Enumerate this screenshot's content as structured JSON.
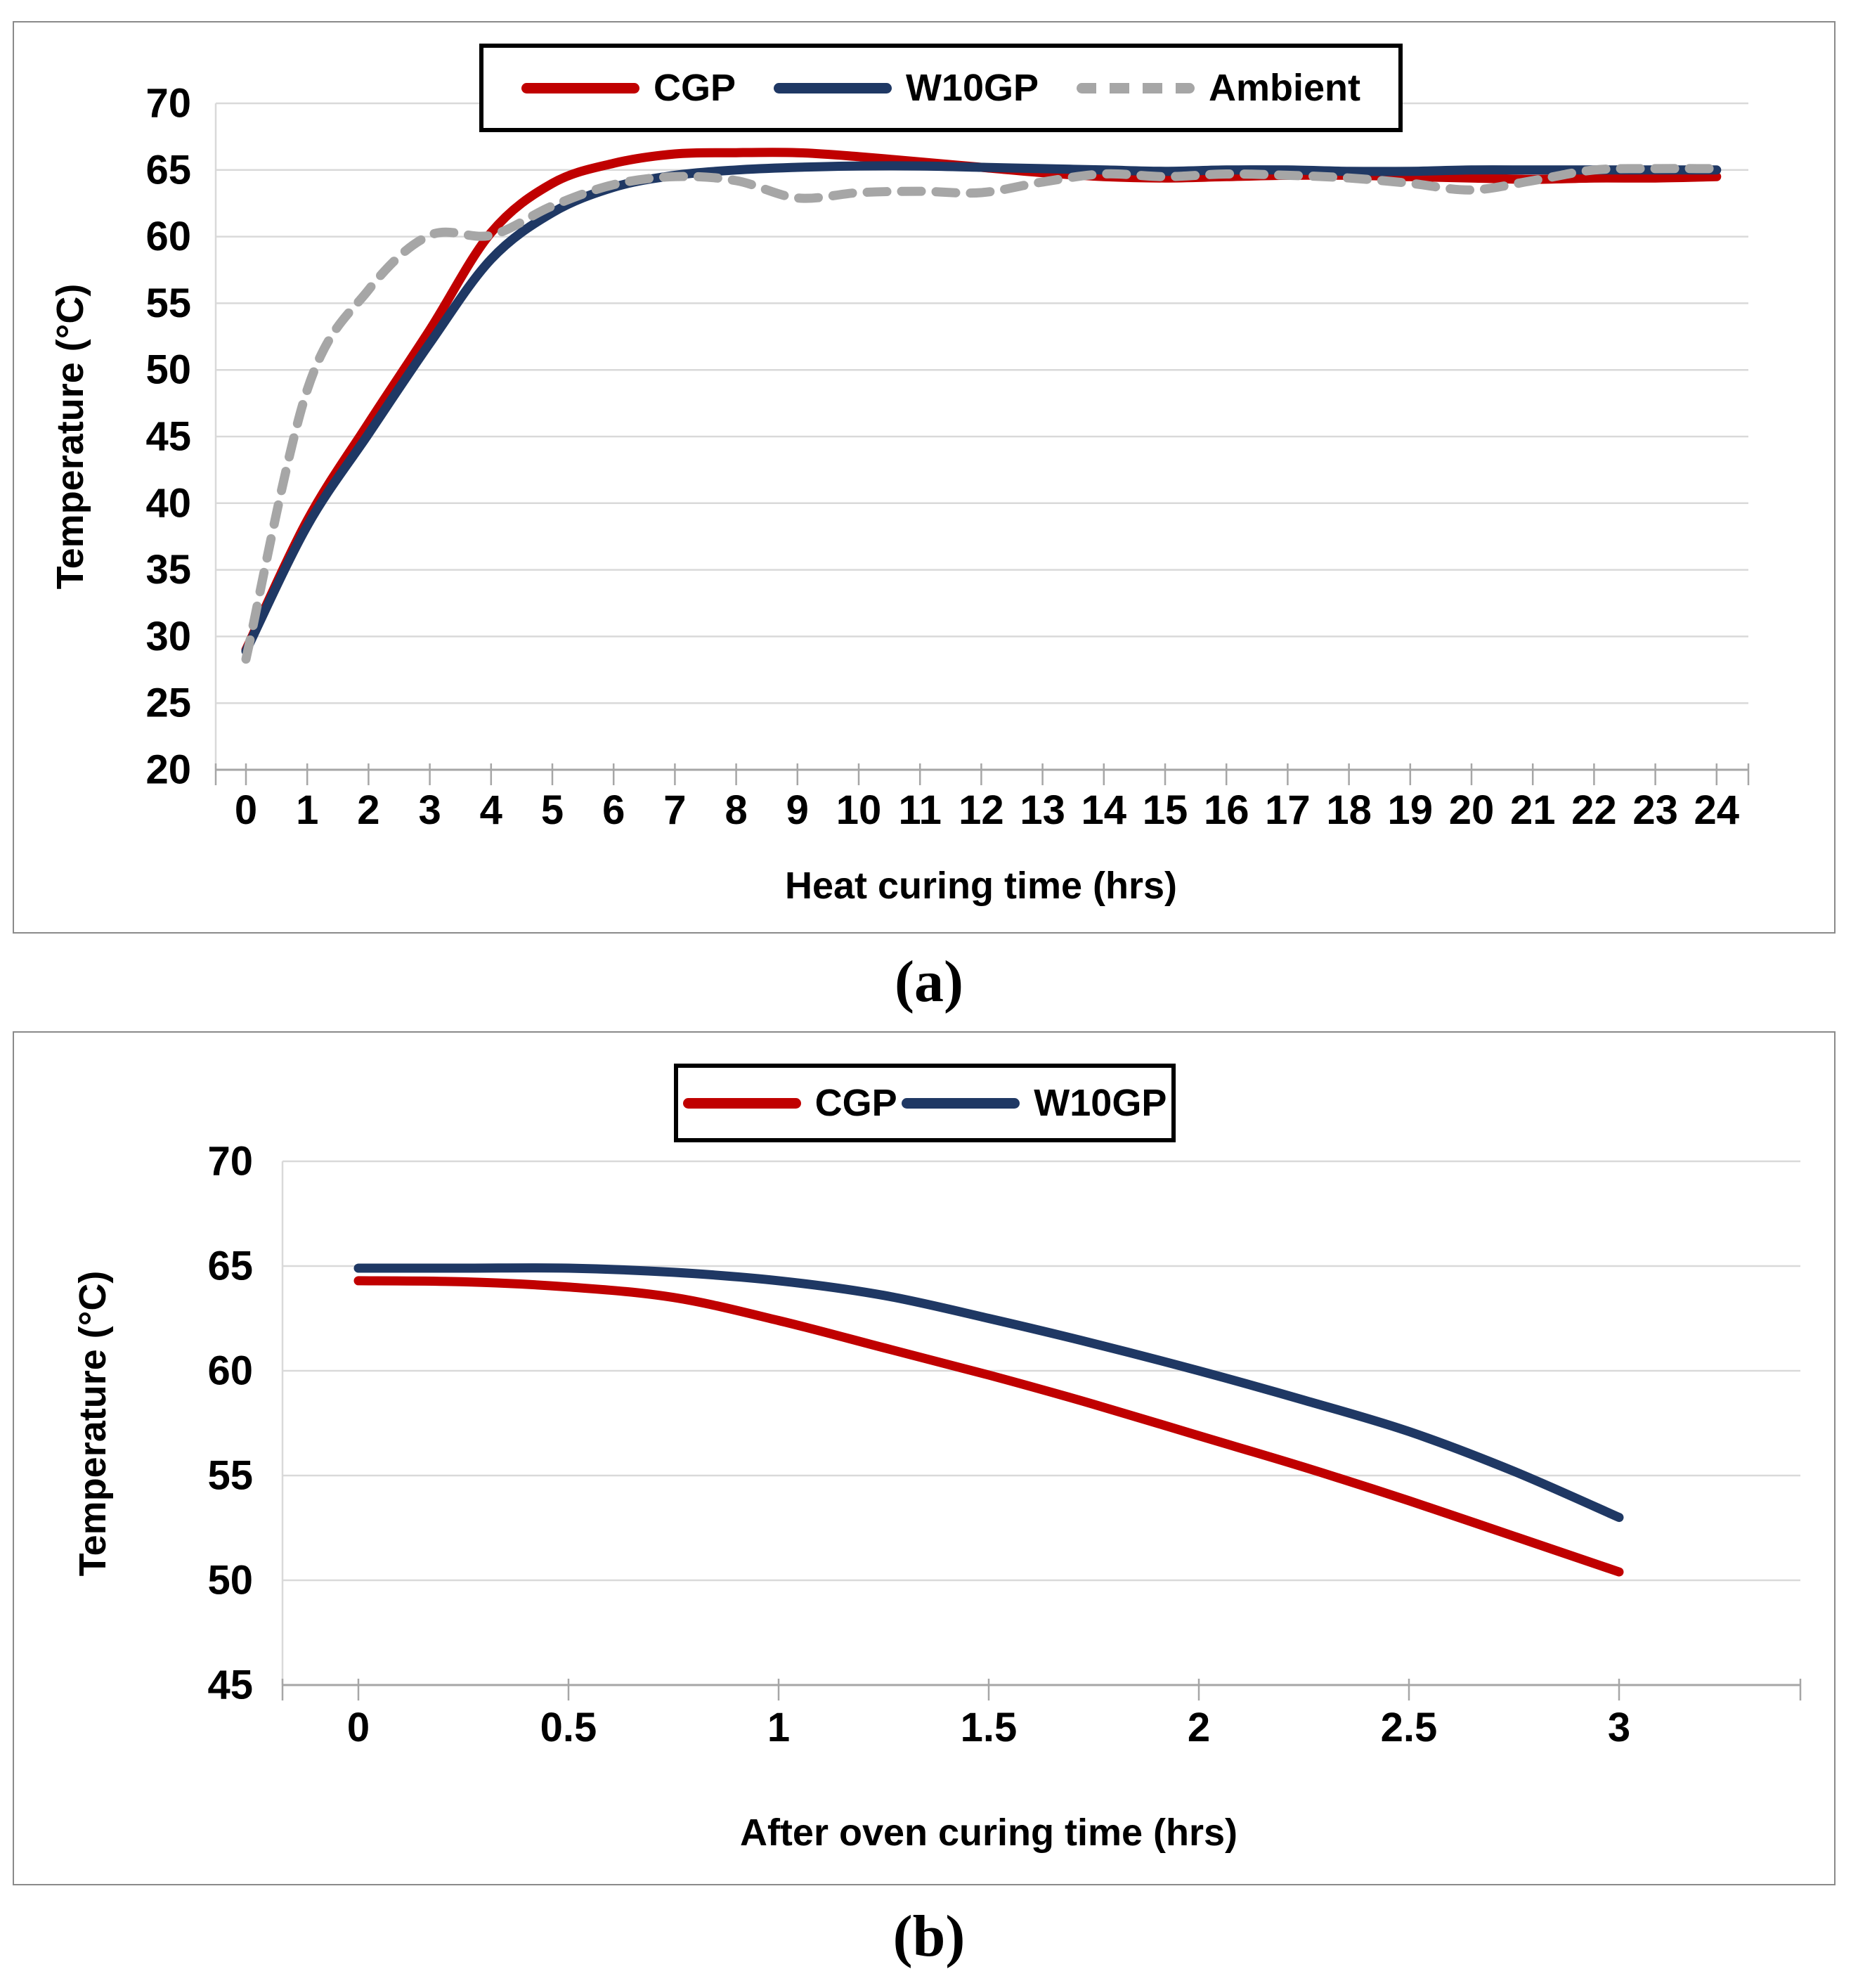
{
  "figure": {
    "caption_a": "(a)",
    "caption_b": "(b)"
  },
  "colors": {
    "cgp": "#C00000",
    "w10gp": "#1F3864",
    "ambient": "#A6A6A6",
    "gridline": "#D9D9D9",
    "axis": "#A6A6A6",
    "text": "#000000",
    "panel_border": "#8A8A8A",
    "legend_border": "#000000"
  },
  "chart_data": [
    {
      "id": "a",
      "type": "line",
      "title": "",
      "xlabel": "Heat curing time (hrs)",
      "ylabel": "Temperature (°C)",
      "xlim": [
        -0.5,
        24.5
      ],
      "ylim": [
        20,
        70
      ],
      "xticks": [
        0,
        1,
        2,
        3,
        4,
        5,
        6,
        7,
        8,
        9,
        10,
        11,
        12,
        13,
        14,
        15,
        16,
        17,
        18,
        19,
        20,
        21,
        22,
        23,
        24
      ],
      "yticks": [
        20,
        25,
        30,
        35,
        40,
        45,
        50,
        55,
        60,
        65,
        70
      ],
      "grid": "horizontal",
      "legend_position": "top-center",
      "legend": [
        "CGP",
        "W10GP",
        "Ambient"
      ],
      "x": [
        0,
        1,
        2,
        3,
        4,
        5,
        6,
        7,
        8,
        9,
        10,
        11,
        12,
        13,
        14,
        15,
        16,
        17,
        18,
        19,
        20,
        21,
        22,
        23,
        24
      ],
      "series": [
        {
          "name": "CGP",
          "color": "#C00000",
          "dash": "solid",
          "values": [
            29.0,
            38.7,
            46.0,
            53.0,
            60.3,
            64.0,
            65.5,
            66.2,
            66.3,
            66.3,
            66.0,
            65.6,
            65.2,
            64.8,
            64.5,
            64.4,
            64.5,
            64.6,
            64.6,
            64.5,
            64.4,
            64.3,
            64.4,
            64.4,
            64.5
          ]
        },
        {
          "name": "W10GP",
          "color": "#1F3864",
          "dash": "solid",
          "values": [
            28.9,
            38.3,
            45.2,
            52.0,
            58.3,
            61.8,
            63.7,
            64.6,
            65.0,
            65.2,
            65.3,
            65.3,
            65.2,
            65.1,
            65.0,
            64.9,
            65.0,
            65.0,
            64.9,
            64.9,
            65.0,
            65.0,
            65.0,
            65.0,
            65.0
          ]
        },
        {
          "name": "Ambient",
          "color": "#A6A6A6",
          "dash": "dashed",
          "values": [
            28.3,
            48.5,
            56.0,
            60.1,
            60.1,
            62.3,
            63.9,
            64.5,
            64.2,
            62.9,
            63.3,
            63.4,
            63.3,
            64.1,
            64.7,
            64.5,
            64.7,
            64.6,
            64.4,
            64.0,
            63.5,
            64.2,
            65.0,
            65.1,
            65.1
          ]
        }
      ]
    },
    {
      "id": "b",
      "type": "line",
      "title": "",
      "xlabel": "After oven curing time (hrs)",
      "ylabel": "Temperature (°C)",
      "xlim": [
        -0.3,
        3.4
      ],
      "ylim": [
        45,
        70
      ],
      "xticks": [
        0,
        0.5,
        1,
        1.5,
        2,
        2.5,
        3
      ],
      "yticks": [
        45,
        50,
        55,
        60,
        65,
        70
      ],
      "grid": "horizontal",
      "legend_position": "top-center",
      "legend": [
        "CGP",
        "W10GP"
      ],
      "x": [
        0,
        0.25,
        0.5,
        0.75,
        1,
        1.25,
        1.5,
        1.75,
        2,
        2.25,
        2.5,
        2.75,
        3
      ],
      "series": [
        {
          "name": "CGP",
          "color": "#C00000",
          "dash": "solid",
          "values": [
            64.3,
            64.25,
            64.0,
            63.5,
            62.4,
            61.1,
            59.8,
            58.4,
            56.9,
            55.4,
            53.8,
            52.1,
            50.4
          ]
        },
        {
          "name": "W10GP",
          "color": "#1F3864",
          "dash": "solid",
          "values": [
            64.9,
            64.9,
            64.9,
            64.7,
            64.3,
            63.6,
            62.5,
            61.3,
            60.0,
            58.6,
            57.1,
            55.2,
            53.0
          ]
        }
      ]
    }
  ]
}
